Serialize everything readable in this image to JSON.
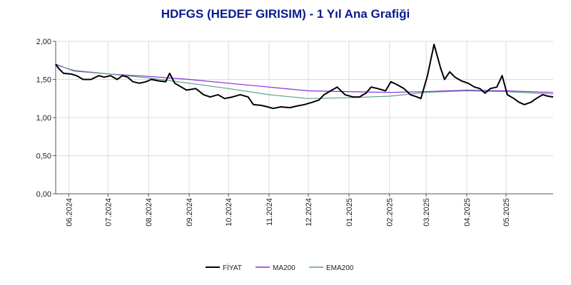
{
  "chart_data": {
    "type": "line",
    "title": "HDFGS (HEDEF GIRISIM) - 1 Yıl Ana Grafiği",
    "xlabel": "",
    "ylabel": "",
    "ylim": [
      0,
      2.0
    ],
    "y_ticks": [
      "0,00",
      "0,50",
      "1,00",
      "1,50",
      "2,00"
    ],
    "x_ticks": [
      "06.2024",
      "07.2024",
      "08.2024",
      "09.2024",
      "10.2024",
      "11.2024",
      "12.2024",
      "01.2025",
      "02.2025",
      "03.2025",
      "04.2025",
      "05.2025"
    ],
    "grid": true,
    "legend_position": "bottom-center",
    "x_range": [
      "2024-05-22",
      "2025-06-06"
    ],
    "series": [
      {
        "name": "FİYAT",
        "color": "#000000",
        "points": [
          [
            "2024-05-22",
            1.7
          ],
          [
            "2024-05-24",
            1.65
          ],
          [
            "2024-05-28",
            1.58
          ],
          [
            "2024-06-03",
            1.57
          ],
          [
            "2024-06-07",
            1.55
          ],
          [
            "2024-06-12",
            1.5
          ],
          [
            "2024-06-18",
            1.5
          ],
          [
            "2024-06-24",
            1.55
          ],
          [
            "2024-06-28",
            1.53
          ],
          [
            "2024-07-03",
            1.55
          ],
          [
            "2024-07-08",
            1.5
          ],
          [
            "2024-07-12",
            1.55
          ],
          [
            "2024-07-16",
            1.53
          ],
          [
            "2024-07-20",
            1.47
          ],
          [
            "2024-07-25",
            1.45
          ],
          [
            "2024-07-30",
            1.47
          ],
          [
            "2024-08-03",
            1.5
          ],
          [
            "2024-08-09",
            1.48
          ],
          [
            "2024-08-14",
            1.47
          ],
          [
            "2024-08-17",
            1.58
          ],
          [
            "2024-08-21",
            1.45
          ],
          [
            "2024-08-26",
            1.4
          ],
          [
            "2024-08-30",
            1.36
          ],
          [
            "2024-09-06",
            1.38
          ],
          [
            "2024-09-12",
            1.3
          ],
          [
            "2024-09-17",
            1.27
          ],
          [
            "2024-09-23",
            1.3
          ],
          [
            "2024-09-28",
            1.25
          ],
          [
            "2024-10-04",
            1.27
          ],
          [
            "2024-10-10",
            1.3
          ],
          [
            "2024-10-16",
            1.27
          ],
          [
            "2024-10-20",
            1.17
          ],
          [
            "2024-10-26",
            1.16
          ],
          [
            "2024-10-31",
            1.14
          ],
          [
            "2024-11-04",
            1.12
          ],
          [
            "2024-11-10",
            1.14
          ],
          [
            "2024-11-17",
            1.13
          ],
          [
            "2024-11-22",
            1.15
          ],
          [
            "2024-11-28",
            1.17
          ],
          [
            "2024-12-04",
            1.2
          ],
          [
            "2024-12-09",
            1.23
          ],
          [
            "2024-12-13",
            1.3
          ],
          [
            "2024-12-18",
            1.35
          ],
          [
            "2024-12-23",
            1.4
          ],
          [
            "2024-12-29",
            1.3
          ],
          [
            "2025-01-04",
            1.27
          ],
          [
            "2025-01-09",
            1.27
          ],
          [
            "2025-01-14",
            1.32
          ],
          [
            "2025-01-18",
            1.4
          ],
          [
            "2025-01-23",
            1.38
          ],
          [
            "2025-01-29",
            1.35
          ],
          [
            "2025-02-02",
            1.47
          ],
          [
            "2025-02-07",
            1.43
          ],
          [
            "2025-02-12",
            1.38
          ],
          [
            "2025-02-17",
            1.3
          ],
          [
            "2025-02-22",
            1.27
          ],
          [
            "2025-02-25",
            1.25
          ],
          [
            "2025-03-02",
            1.55
          ],
          [
            "2025-03-07",
            1.96
          ],
          [
            "2025-03-12",
            1.65
          ],
          [
            "2025-03-15",
            1.5
          ],
          [
            "2025-03-19",
            1.6
          ],
          [
            "2025-03-23",
            1.53
          ],
          [
            "2025-03-28",
            1.48
          ],
          [
            "2025-04-02",
            1.45
          ],
          [
            "2025-04-07",
            1.4
          ],
          [
            "2025-04-11",
            1.38
          ],
          [
            "2025-04-15",
            1.32
          ],
          [
            "2025-04-19",
            1.38
          ],
          [
            "2025-04-24",
            1.4
          ],
          [
            "2025-04-28",
            1.55
          ],
          [
            "2025-05-02",
            1.3
          ],
          [
            "2025-05-07",
            1.25
          ],
          [
            "2025-05-11",
            1.2
          ],
          [
            "2025-05-15",
            1.17
          ],
          [
            "2025-05-20",
            1.2
          ],
          [
            "2025-05-24",
            1.25
          ],
          [
            "2025-05-29",
            1.3
          ],
          [
            "2025-06-02",
            1.28
          ],
          [
            "2025-06-06",
            1.27
          ]
        ]
      },
      {
        "name": "MA200",
        "color": "#8a2be2",
        "points": [
          [
            "2024-05-22",
            1.7
          ],
          [
            "2024-06-05",
            1.61
          ],
          [
            "2024-07-03",
            1.57
          ],
          [
            "2024-08-01",
            1.54
          ],
          [
            "2024-09-01",
            1.5
          ],
          [
            "2024-10-01",
            1.45
          ],
          [
            "2024-11-01",
            1.4
          ],
          [
            "2024-12-01",
            1.35
          ],
          [
            "2024-12-31",
            1.34
          ],
          [
            "2025-02-01",
            1.33
          ],
          [
            "2025-03-01",
            1.34
          ],
          [
            "2025-04-01",
            1.36
          ],
          [
            "2025-05-01",
            1.35
          ],
          [
            "2025-06-06",
            1.33
          ]
        ]
      },
      {
        "name": "EMA200",
        "color": "#5f9e8f",
        "points": [
          [
            "2024-05-22",
            1.69
          ],
          [
            "2024-06-05",
            1.62
          ],
          [
            "2024-07-03",
            1.57
          ],
          [
            "2024-08-01",
            1.52
          ],
          [
            "2024-09-01",
            1.45
          ],
          [
            "2024-10-01",
            1.38
          ],
          [
            "2024-11-01",
            1.3
          ],
          [
            "2024-12-01",
            1.25
          ],
          [
            "2024-12-31",
            1.26
          ],
          [
            "2025-02-01",
            1.28
          ],
          [
            "2025-03-01",
            1.33
          ],
          [
            "2025-04-01",
            1.35
          ],
          [
            "2025-05-01",
            1.34
          ],
          [
            "2025-06-06",
            1.31
          ]
        ]
      }
    ]
  }
}
